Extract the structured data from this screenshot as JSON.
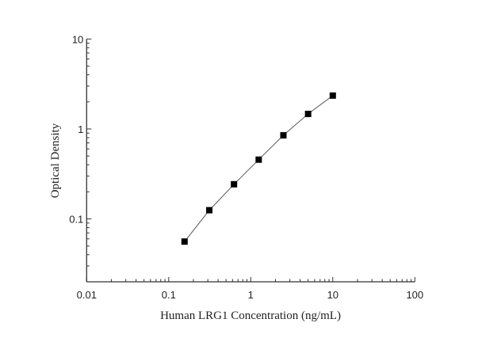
{
  "chart_data": {
    "type": "scatter",
    "title": "",
    "xlabel": "Human LRG1 Concentration (ng/mL)",
    "ylabel": "Optical Density",
    "xscale": "log",
    "yscale": "log",
    "xlim": [
      0.01,
      100
    ],
    "ylim": [
      0.02,
      10
    ],
    "xticks": [
      0.01,
      0.1,
      1,
      10,
      100
    ],
    "xtick_labels": [
      "0.01",
      "0.1",
      "1",
      "10",
      "100"
    ],
    "yticks": [
      0.1,
      1,
      10
    ],
    "ytick_labels": [
      "0.1",
      "1",
      "10"
    ],
    "grid": false,
    "marker": "square",
    "connected_by_line": true,
    "colors": {
      "marker": "#000000",
      "line": "#555555",
      "axis": "#333333"
    },
    "series": [
      {
        "x": [
          0.156,
          0.3125,
          0.625,
          1.25,
          2.5,
          5,
          10
        ],
        "y": [
          0.056,
          0.125,
          0.243,
          0.456,
          0.851,
          1.47,
          2.35
        ]
      }
    ]
  }
}
